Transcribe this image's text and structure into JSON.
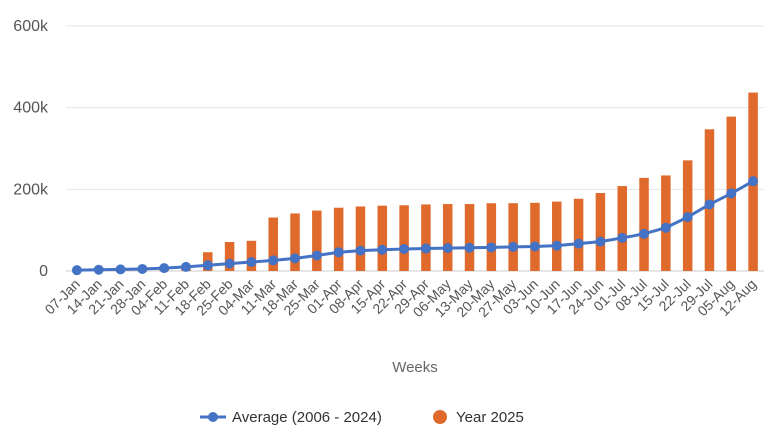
{
  "chart_data": {
    "type": "bar",
    "title": "",
    "xlabel": "Weeks",
    "ylabel": "",
    "ylim": [
      0,
      600000
    ],
    "yticks": [
      0,
      200000,
      400000,
      600000
    ],
    "ytick_labels": [
      "0",
      "200k",
      "400k",
      "600k"
    ],
    "grid": true,
    "legend_position": "bottom",
    "categories": [
      "07-Jan",
      "14-Jan",
      "21-Jan",
      "28-Jan",
      "04-Feb",
      "11-Feb",
      "18-Feb",
      "25-Feb",
      "04-Mar",
      "11-Mar",
      "18-Mar",
      "25-Mar",
      "01-Apr",
      "08-Apr",
      "15-Apr",
      "22-Apr",
      "29-Apr",
      "06-May",
      "13-May",
      "20-May",
      "27-May",
      "03-Jun",
      "10-Jun",
      "17-Jun",
      "24-Jun",
      "01-Jul",
      "08-Jul",
      "15-Jul",
      "22-Jul",
      "29-Jul",
      "05-Aug",
      "12-Aug"
    ],
    "series": [
      {
        "name": "Average (2006 - 2024)",
        "kind": "line",
        "color": "#4472c4",
        "values": [
          2000,
          3000,
          4000,
          5000,
          7000,
          10000,
          14000,
          18000,
          22000,
          26000,
          31000,
          38000,
          46000,
          50000,
          52000,
          54000,
          55000,
          56000,
          57000,
          58000,
          59000,
          60000,
          62000,
          67000,
          72000,
          81000,
          91000,
          106000,
          132000,
          163000,
          190000,
          220000
        ]
      },
      {
        "name": "Year 2025",
        "kind": "bar",
        "color": "#e06a2c",
        "values": [
          2000,
          3000,
          4000,
          5000,
          7000,
          10000,
          46000,
          71000,
          74000,
          131000,
          141000,
          148000,
          155000,
          158000,
          160000,
          161000,
          163000,
          164000,
          164000,
          166000,
          166000,
          167000,
          170000,
          177000,
          191000,
          208000,
          228000,
          234000,
          271000,
          347000,
          378000,
          437000
        ]
      }
    ]
  }
}
